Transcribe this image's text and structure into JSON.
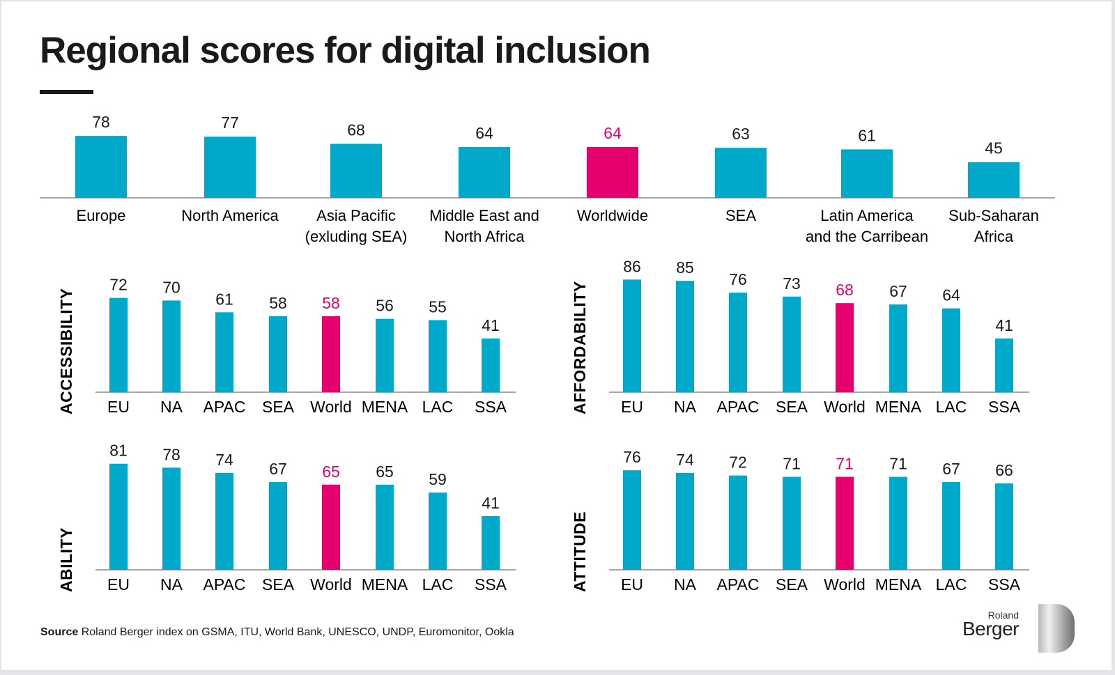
{
  "title": "Regional scores for digital inclusion",
  "colors": {
    "bar": "#00a9c9",
    "highlight": "#e6006e",
    "text": "#1a1a1a"
  },
  "source_label": "Source",
  "source_text": "Roland Berger index on GSMA, ITU, World Bank, UNESCO, UNDP, Euromonitor, Ookla",
  "logo_text": [
    "Roland",
    "Berger"
  ],
  "chart_data": [
    {
      "type": "bar",
      "title": "",
      "categories": [
        [
          "Europe"
        ],
        [
          "North America"
        ],
        [
          "Asia Pacific",
          "(exluding SEA)"
        ],
        [
          "Middle East and",
          "North Africa"
        ],
        [
          "Worldwide"
        ],
        [
          "SEA"
        ],
        [
          "Latin America",
          "and the Carribean"
        ],
        [
          "Sub-Saharan",
          "Africa"
        ]
      ],
      "values": [
        78,
        77,
        68,
        64,
        64,
        63,
        61,
        45
      ],
      "highlight_index": 4
    },
    {
      "type": "bar",
      "ylabel": "ACCESSIBILITY",
      "categories": [
        "EU",
        "NA",
        "APAC",
        "SEA",
        "World",
        "MENA",
        "LAC",
        "SSA"
      ],
      "values": [
        72,
        70,
        61,
        58,
        58,
        56,
        55,
        41
      ],
      "highlight_index": 4
    },
    {
      "type": "bar",
      "ylabel": "AFFORDABILITY",
      "categories": [
        "EU",
        "NA",
        "APAC",
        "SEA",
        "World",
        "MENA",
        "LAC",
        "SSA"
      ],
      "values": [
        86,
        85,
        76,
        73,
        68,
        67,
        64,
        41
      ],
      "highlight_index": 4
    },
    {
      "type": "bar",
      "ylabel": "ABILITY",
      "categories": [
        "EU",
        "NA",
        "APAC",
        "SEA",
        "World",
        "MENA",
        "LAC",
        "SSA"
      ],
      "values": [
        81,
        78,
        74,
        67,
        65,
        65,
        59,
        41
      ],
      "highlight_index": 4
    },
    {
      "type": "bar",
      "ylabel": "ATTITUDE",
      "categories": [
        "EU",
        "NA",
        "APAC",
        "SEA",
        "World",
        "MENA",
        "LAC",
        "SSA"
      ],
      "values": [
        76,
        74,
        72,
        71,
        71,
        71,
        67,
        66
      ],
      "highlight_index": 4
    }
  ]
}
